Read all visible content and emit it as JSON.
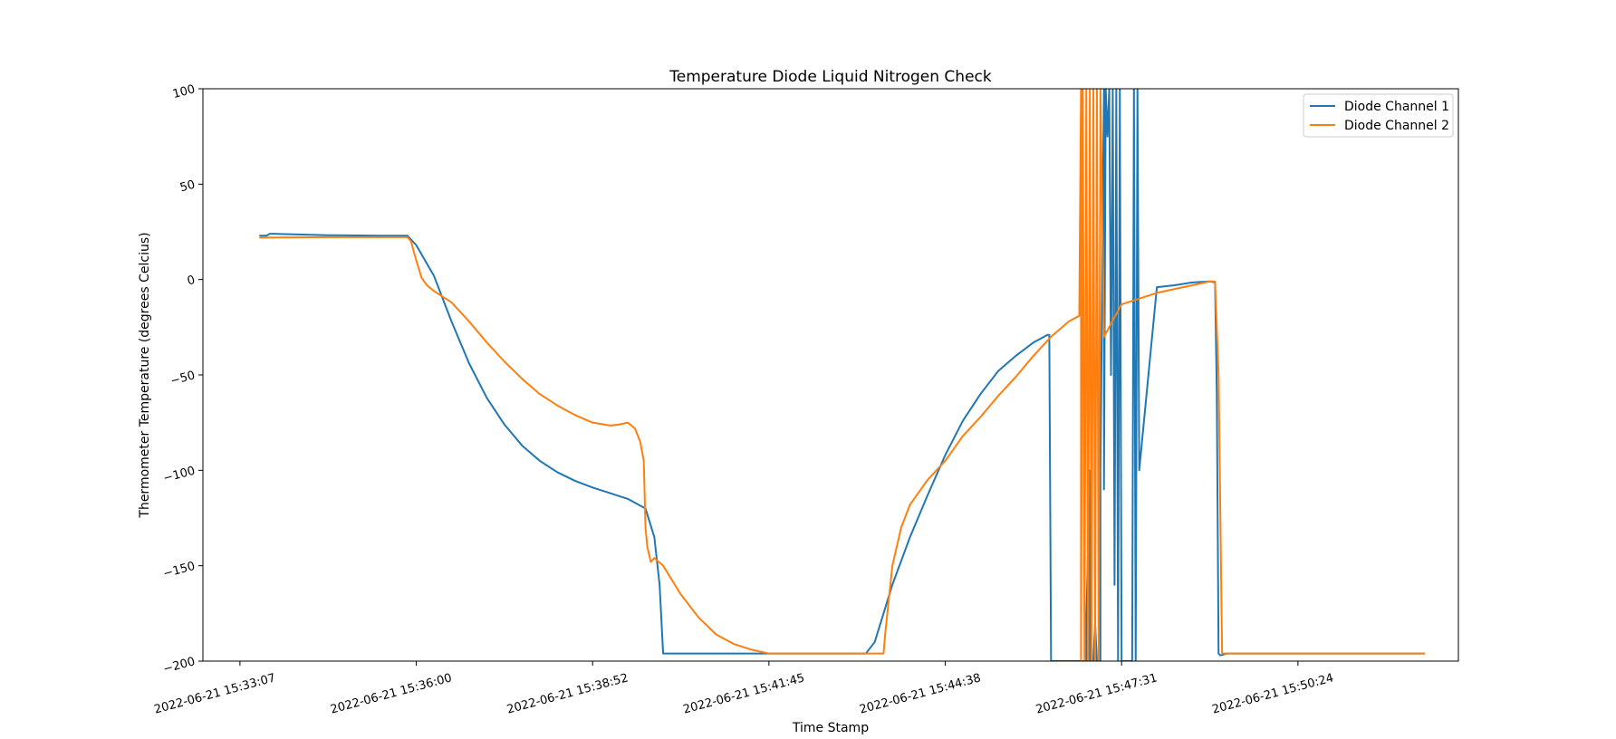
{
  "chart_data": {
    "type": "line",
    "title": "Temperature Diode Liquid Nitrogen Check",
    "xlabel": "Time Stamp",
    "ylabel": "Thermometer Temperature (degrees Celcius)",
    "ylim": [
      -200,
      100
    ],
    "xlim": [
      -0.21,
      6.91
    ],
    "ytick_values": [
      -200,
      -150,
      -100,
      -50,
      0,
      50,
      100
    ],
    "ytick_labels": [
      "−200",
      "−150",
      "−100",
      "−50",
      "0",
      "50",
      "100"
    ],
    "xtick_labels": [
      "2022-06-21 15:33:07",
      "2022-06-21 15:36:00",
      "2022-06-21 15:38:52",
      "2022-06-21 15:41:45",
      "2022-06-21 15:44:38",
      "2022-06-21 15:47:31",
      "2022-06-21 15:50:24"
    ],
    "grid": false,
    "legend_position": "top-right",
    "series": [
      {
        "name": "Diode Channel 1",
        "color": "#1f77b4",
        "x": [
          0.11,
          0.15,
          0.17,
          0.19,
          0.25,
          0.5,
          0.8,
          0.95,
          0.97,
          1.0,
          1.1,
          1.2,
          1.3,
          1.4,
          1.5,
          1.6,
          1.7,
          1.8,
          1.9,
          2.0,
          2.1,
          2.2,
          2.3,
          2.35,
          2.38,
          2.4,
          2.42,
          2.44,
          2.45,
          2.5,
          2.8,
          3.1,
          3.3,
          3.4,
          3.55,
          3.6,
          3.65,
          3.7,
          3.8,
          3.9,
          4.0,
          4.1,
          4.2,
          4.3,
          4.4,
          4.5,
          4.58,
          4.59,
          4.6,
          4.8,
          4.8,
          4.82,
          4.82,
          4.84,
          4.84,
          4.85,
          4.86,
          4.88,
          4.88,
          4.9,
          4.9,
          4.91,
          4.92,
          4.93,
          4.94,
          4.95,
          4.96,
          4.97,
          4.98,
          4.99,
          5.0,
          5.02,
          5.04,
          5.06,
          5.07,
          5.08,
          5.09,
          5.1,
          5.2,
          5.3,
          5.4,
          5.5,
          5.53,
          5.54,
          5.55,
          5.56,
          5.6,
          5.7,
          6.0,
          6.5,
          6.72
        ],
        "y": [
          23,
          23,
          24,
          24,
          23.8,
          23.2,
          23,
          23,
          21,
          18,
          2,
          -22,
          -44,
          -62,
          -76,
          -87,
          -95,
          -101,
          -105.5,
          -109,
          -112,
          -115,
          -120,
          -135,
          -160,
          -196,
          -196,
          -196,
          -196,
          -196,
          -196,
          -196,
          -196,
          -196,
          -196,
          -190,
          -175,
          -160,
          -135,
          -113,
          -92,
          -74,
          -60,
          -48,
          -40,
          -33,
          -29,
          -29,
          -200,
          -200,
          -180,
          -100,
          -200,
          -200,
          -200,
          -180,
          -200,
          -200,
          -100,
          100,
          -110,
          100,
          75,
          100,
          -50,
          100,
          -160,
          100,
          -200,
          100,
          -200,
          -200,
          -200,
          -200,
          100,
          -200,
          100,
          -100,
          -4,
          -3,
          -1.5,
          -1,
          -1.5,
          -60,
          -196,
          -197,
          -196,
          -196,
          -196,
          -196,
          -196
        ]
      },
      {
        "name": "Diode Channel 2",
        "color": "#ff7f0e",
        "x": [
          0.11,
          0.5,
          0.8,
          0.95,
          0.97,
          1.0,
          1.03,
          1.06,
          1.1,
          1.2,
          1.3,
          1.4,
          1.5,
          1.6,
          1.7,
          1.8,
          1.9,
          2.0,
          2.1,
          2.15,
          2.2,
          2.24,
          2.27,
          2.29,
          2.3,
          2.31,
          2.33,
          2.35,
          2.4,
          2.5,
          2.6,
          2.7,
          2.8,
          2.9,
          3.0,
          3.08,
          3.09,
          3.1,
          3.3,
          3.5,
          3.6,
          3.65,
          3.66,
          3.7,
          3.75,
          3.8,
          3.9,
          4.0,
          4.1,
          4.2,
          4.3,
          4.4,
          4.5,
          4.6,
          4.7,
          4.76,
          4.77,
          4.77,
          4.78,
          4.79,
          4.8,
          4.81,
          4.82,
          4.83,
          4.84,
          4.85,
          4.86,
          4.87,
          4.88,
          4.9,
          5.0,
          5.2,
          5.4,
          5.5,
          5.53,
          5.55,
          5.57,
          5.59,
          5.6,
          5.7,
          6.0,
          6.5,
          6.72
        ],
        "y": [
          22,
          22.2,
          22.2,
          22.2,
          20,
          10,
          1,
          -3,
          -6,
          -12,
          -22,
          -33,
          -43,
          -52,
          -60,
          -66,
          -71,
          -75,
          -76.5,
          -76,
          -75,
          -78,
          -85,
          -95,
          -130,
          -140,
          -148,
          -146,
          -150,
          -165,
          -177,
          -186,
          -191,
          -194,
          -196,
          -196,
          -196,
          -196,
          -196,
          -196,
          -196,
          -196,
          -185,
          -150,
          -130,
          -118,
          -105,
          -95,
          -82,
          -72,
          -61,
          -51,
          -40,
          -30,
          -22,
          -19,
          100,
          -200,
          100,
          -200,
          100,
          -200,
          100,
          -200,
          100,
          -200,
          100,
          -200,
          100,
          -30,
          -13,
          -7,
          -3,
          -1,
          -1,
          -50,
          -196,
          -196,
          -196,
          -196,
          -196,
          -196,
          -196
        ]
      }
    ]
  }
}
